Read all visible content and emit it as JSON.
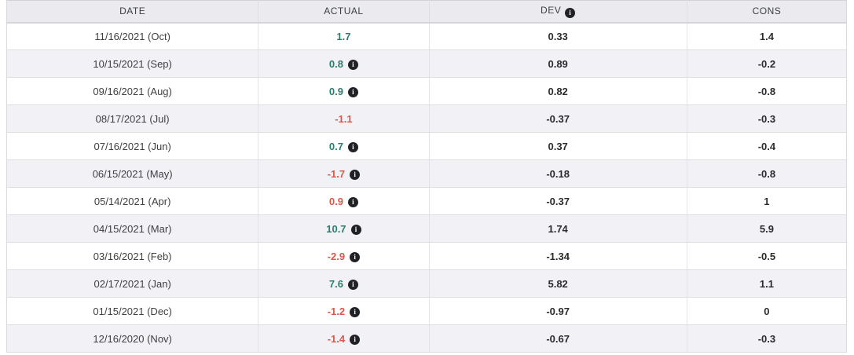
{
  "colors": {
    "positive": "#2d7d6e",
    "negative": "#dd574a",
    "icon_bg": "#202124",
    "header_bg": "#eaeaef",
    "stripe_bg": "#f1f1f6"
  },
  "icons": {
    "info_glyph": "i"
  },
  "table": {
    "columns": [
      {
        "label": "DATE",
        "info_icon": false
      },
      {
        "label": "ACTUAL",
        "info_icon": false
      },
      {
        "label": "DEV",
        "info_icon": true
      },
      {
        "label": "CONS",
        "info_icon": false
      }
    ],
    "rows": [
      {
        "date": "11/16/2021 (Oct)",
        "actual": {
          "value": "1.7",
          "trend": "positive",
          "info_icon": false
        },
        "dev": "0.33",
        "cons": "1.4"
      },
      {
        "date": "10/15/2021 (Sep)",
        "actual": {
          "value": "0.8",
          "trend": "positive",
          "info_icon": true
        },
        "dev": "0.89",
        "cons": "-0.2"
      },
      {
        "date": "09/16/2021 (Aug)",
        "actual": {
          "value": "0.9",
          "trend": "positive",
          "info_icon": true
        },
        "dev": "0.82",
        "cons": "-0.8"
      },
      {
        "date": "08/17/2021 (Jul)",
        "actual": {
          "value": "-1.1",
          "trend": "negative",
          "info_icon": false
        },
        "dev": "-0.37",
        "cons": "-0.3"
      },
      {
        "date": "07/16/2021 (Jun)",
        "actual": {
          "value": "0.7",
          "trend": "positive",
          "info_icon": true
        },
        "dev": "0.37",
        "cons": "-0.4"
      },
      {
        "date": "06/15/2021 (May)",
        "actual": {
          "value": "-1.7",
          "trend": "negative",
          "info_icon": true
        },
        "dev": "-0.18",
        "cons": "-0.8"
      },
      {
        "date": "05/14/2021 (Apr)",
        "actual": {
          "value": "0.9",
          "trend": "negative",
          "info_icon": true
        },
        "dev": "-0.37",
        "cons": "1"
      },
      {
        "date": "04/15/2021 (Mar)",
        "actual": {
          "value": "10.7",
          "trend": "positive",
          "info_icon": true
        },
        "dev": "1.74",
        "cons": "5.9"
      },
      {
        "date": "03/16/2021 (Feb)",
        "actual": {
          "value": "-2.9",
          "trend": "negative",
          "info_icon": true
        },
        "dev": "-1.34",
        "cons": "-0.5"
      },
      {
        "date": "02/17/2021 (Jan)",
        "actual": {
          "value": "7.6",
          "trend": "positive",
          "info_icon": true
        },
        "dev": "5.82",
        "cons": "1.1"
      },
      {
        "date": "01/15/2021 (Dec)",
        "actual": {
          "value": "-1.2",
          "trend": "negative",
          "info_icon": true
        },
        "dev": "-0.97",
        "cons": "0"
      },
      {
        "date": "12/16/2020 (Nov)",
        "actual": {
          "value": "-1.4",
          "trend": "negative",
          "info_icon": true
        },
        "dev": "-0.67",
        "cons": "-0.3"
      }
    ]
  }
}
